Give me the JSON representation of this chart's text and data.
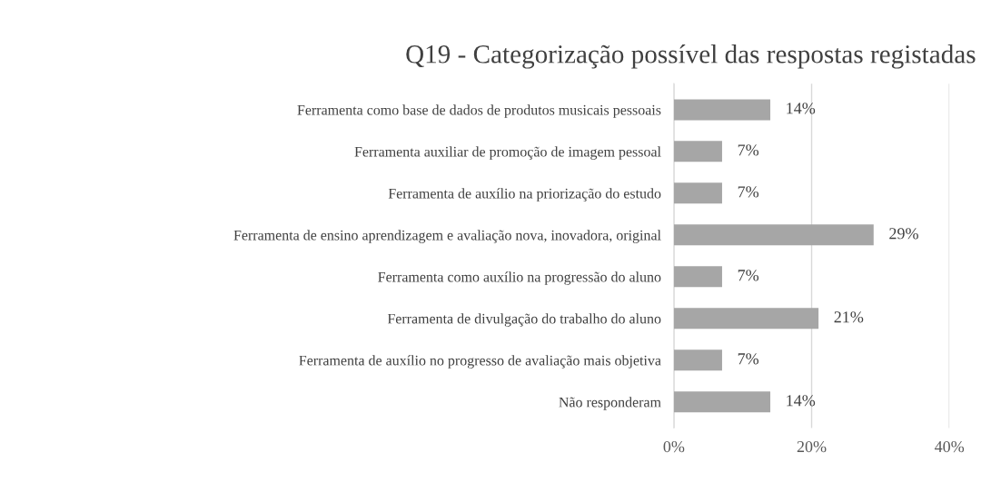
{
  "chart_data": {
    "type": "bar",
    "orientation": "horizontal",
    "title": "Q19 - Categorização possível das respostas registadas",
    "categories": [
      "Ferramenta como base de dados de produtos musicais pessoais",
      "Ferramenta auxiliar de promoção de imagem pessoal",
      "Ferramenta de auxílio na priorização do estudo",
      "Ferramenta de ensino aprendizagem e avaliação nova, inovadora, original",
      "Ferramenta como auxílio na progressão do aluno",
      "Ferramenta de divulgação do trabalho do aluno",
      "Ferramenta de auxílio no progresso de avaliação mais objetiva",
      "Não responderam"
    ],
    "values": [
      14,
      7,
      7,
      29,
      7,
      21,
      7,
      14
    ],
    "value_labels": [
      "14%",
      "7%",
      "7%",
      "29%",
      "7%",
      "21%",
      "7%",
      "14%"
    ],
    "color": "#a6a6a6",
    "xlim": [
      0,
      40
    ],
    "xticks": [
      {
        "value": 0,
        "label": "0%"
      },
      {
        "value": 20,
        "label": "20%"
      },
      {
        "value": 40,
        "label": "40%"
      }
    ],
    "grid": "x",
    "legend": false
  }
}
